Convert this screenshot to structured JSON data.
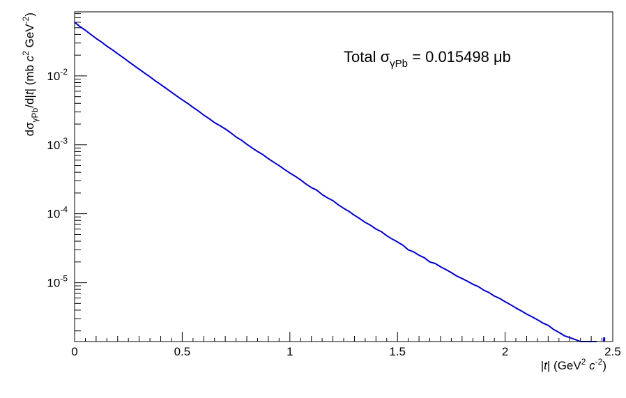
{
  "chart_data": {
    "type": "line",
    "title": "",
    "annotation": {
      "prefix": "Total σ",
      "subscript": "γPb",
      "suffix": " = 0.015498 μb"
    },
    "xlabel": {
      "pre": "|",
      "italic": "t",
      "mid": "| (GeV",
      "sup": "2",
      "sp": " ",
      "italic2": "c",
      "sup2": "-2",
      "post": ")"
    },
    "ylabel": {
      "a": "dσ",
      "sub": "γPb",
      "b": "/d|",
      "i1": "t",
      "c": "| (mb ",
      "i2": "c",
      "sup1": "2",
      "d": " GeV",
      "sup2": "-2",
      "e": ")"
    },
    "xlim": [
      0,
      2.5
    ],
    "ylim": [
      1.4e-06,
      0.085
    ],
    "yscale": "log",
    "grid": false,
    "x_ticks": [
      "0",
      "0.5",
      "1",
      "1.5",
      "2",
      "2.5"
    ],
    "y_ticks": [
      {
        "base": "10",
        "exp": "-5"
      },
      {
        "base": "10",
        "exp": "-4"
      },
      {
        "base": "10",
        "exp": "-3"
      },
      {
        "base": "10",
        "exp": "-2"
      }
    ],
    "line_color": "#0000cc",
    "series": [
      {
        "x": [
          0,
          0.025,
          0.05,
          0.075,
          0.1,
          0.125,
          0.15,
          0.175,
          0.2,
          0.225,
          0.25,
          0.275,
          0.3,
          0.325,
          0.35,
          0.375,
          0.4,
          0.425,
          0.45,
          0.475,
          0.5,
          0.525,
          0.55,
          0.575,
          0.6,
          0.625,
          0.65,
          0.675,
          0.7,
          0.725,
          0.75,
          0.775,
          0.8,
          0.825,
          0.85,
          0.875,
          0.9,
          0.925,
          0.95,
          0.975,
          1.0,
          1.025,
          1.05,
          1.075,
          1.1,
          1.125,
          1.15,
          1.175,
          1.2,
          1.225,
          1.25,
          1.275,
          1.3,
          1.325,
          1.35,
          1.375,
          1.4,
          1.425,
          1.45,
          1.475,
          1.5,
          1.525,
          1.55,
          1.575,
          1.6,
          1.625,
          1.65,
          1.675,
          1.7,
          1.725,
          1.75,
          1.775,
          1.8,
          1.825,
          1.85,
          1.875,
          1.9,
          1.925,
          1.95,
          1.975,
          2.0,
          2.025,
          2.05,
          2.075,
          2.1,
          2.125,
          2.15,
          2.175,
          2.2,
          2.225,
          2.25,
          2.275,
          2.3,
          2.325,
          2.35,
          2.375,
          2.4,
          2.425
        ],
        "y": [
          0.06,
          0.052,
          0.046,
          0.04,
          0.035,
          0.031,
          0.027,
          0.024,
          0.021,
          0.0185,
          0.0162,
          0.0142,
          0.0125,
          0.011,
          0.0097,
          0.0085,
          0.0075,
          0.0066,
          0.0058,
          0.0051,
          0.0045,
          0.004,
          0.0035,
          0.0031,
          0.0027,
          0.0024,
          0.0021,
          0.0019,
          0.0017,
          0.0015,
          0.0013,
          0.00117,
          0.00102,
          0.0009,
          0.0008,
          0.00072,
          0.00063,
          0.00056,
          0.0005,
          0.00044,
          0.00039,
          0.00035,
          0.00031,
          0.00027,
          0.00024,
          0.00022,
          0.00019,
          0.00017,
          0.000155,
          0.000135,
          0.00012,
          0.000108,
          9.5e-05,
          8.5e-05,
          7.5e-05,
          6.8e-05,
          6e-05,
          5.5e-05,
          4.8e-05,
          4.3e-05,
          3.9e-05,
          3.5e-05,
          3e-05,
          2.8e-05,
          2.5e-05,
          2.3e-05,
          2e-05,
          1.9e-05,
          1.7e-05,
          1.55e-05,
          1.4e-05,
          1.25e-05,
          1.15e-05,
          1.05e-05,
          9.5e-06,
          8.8e-06,
          7.8e-06,
          7.2e-06,
          6.4e-06,
          5.9e-06,
          5.3e-06,
          4.8e-06,
          4.3e-06,
          3.9e-06,
          3.5e-06,
          3.2e-06,
          2.9e-06,
          2.6e-06,
          2.4e-06,
          2.1e-06,
          1.9e-06,
          1.7e-06,
          1.6e-06,
          1.5e-06,
          1.4e-06,
          1.3e-06,
          1.25e-06,
          1.2e-06
        ]
      }
    ]
  }
}
